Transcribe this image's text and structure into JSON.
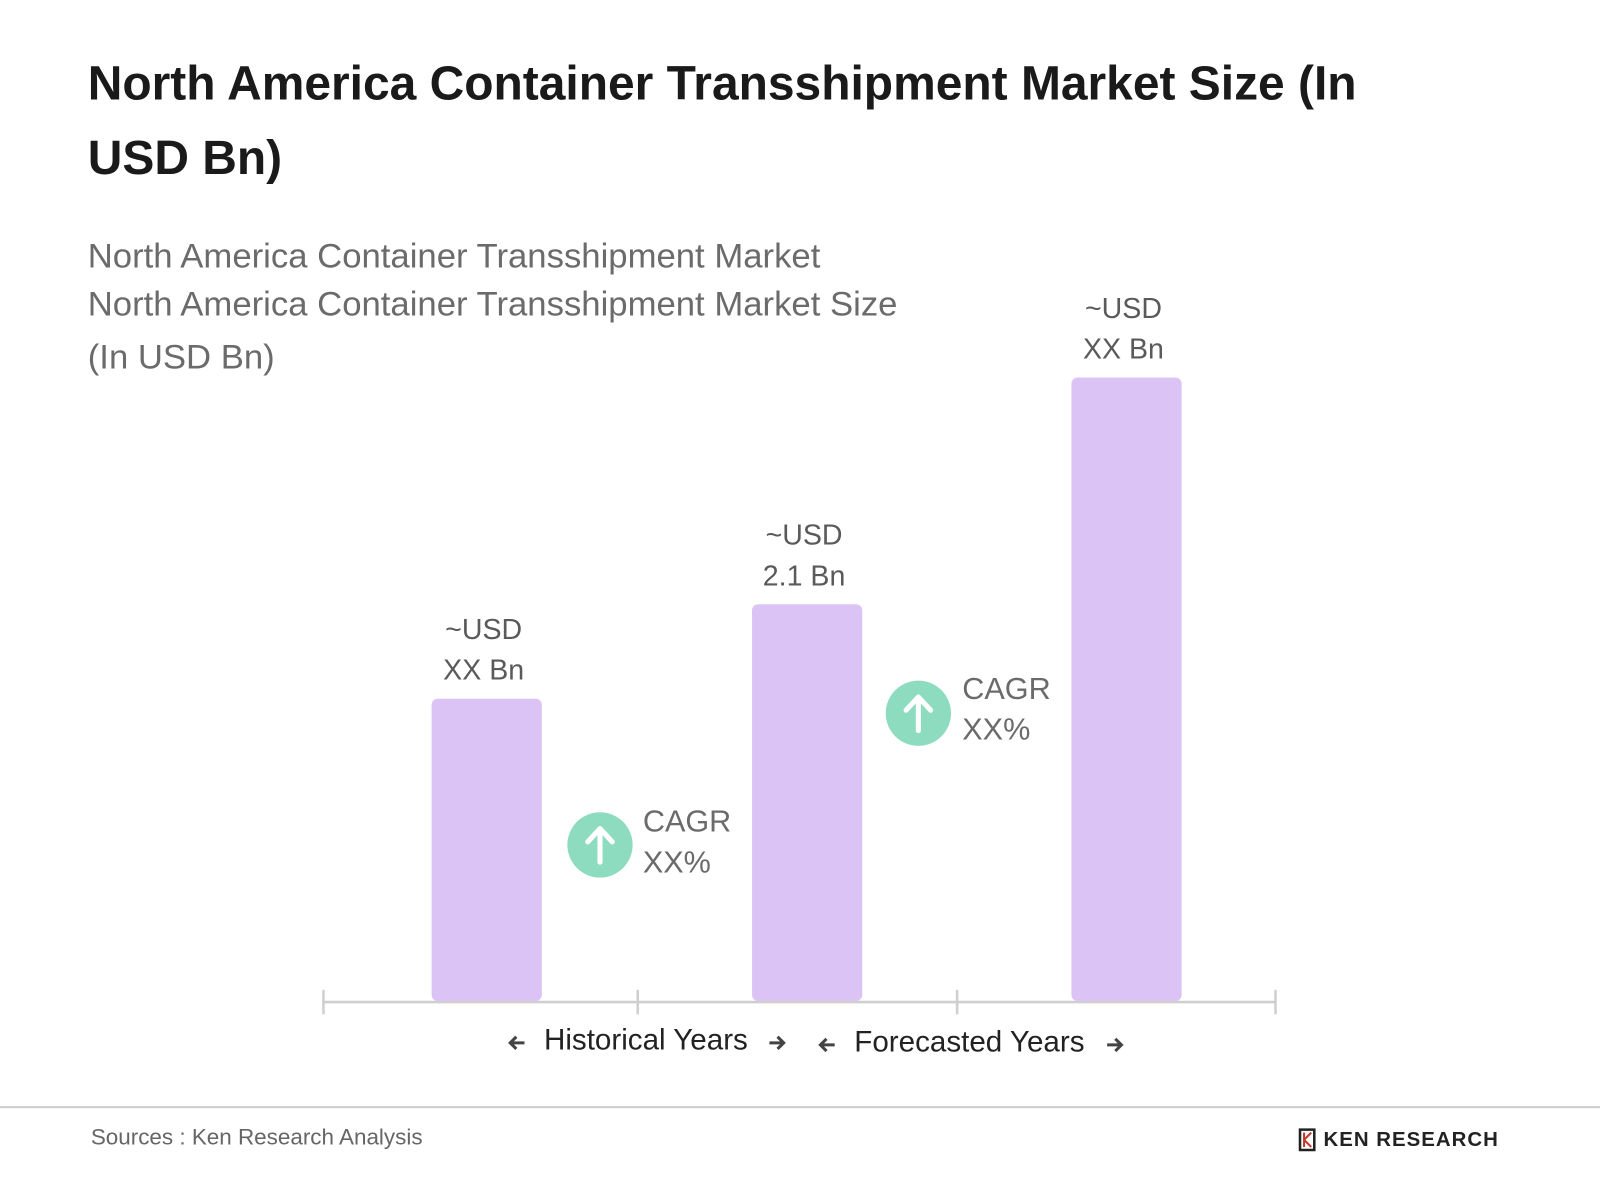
{
  "chart_data": {
    "type": "bar",
    "title": [
      "North America Container Transshipment Market Size (In",
      "USD Bn)"
    ],
    "subtitle": [
      "North America Container Transshipment Market",
      "North America Container Transshipment Market Size",
      "(In USD Bn)"
    ],
    "categories": [
      null,
      null,
      null
    ],
    "values": [
      1.6,
      2.1,
      3.3
    ],
    "value_labels": [
      [
        "~USD",
        "XX Bn"
      ],
      [
        "~USD",
        "2.1 Bn"
      ],
      [
        "~USD",
        "XX Bn"
      ]
    ],
    "color": "#dcc3f5",
    "annotations": [
      {
        "lines": [
          "CAGR",
          "XX%"
        ],
        "color": "#8ddcc0"
      },
      {
        "lines": [
          "CAGR",
          "XX%"
        ],
        "color": "#8ddcc0"
      }
    ],
    "sections": [
      "Historical Years",
      "Forecasted Years"
    ],
    "source": "Sources : Ken Research Analysis",
    "brand": "KEN RESEARCH"
  }
}
